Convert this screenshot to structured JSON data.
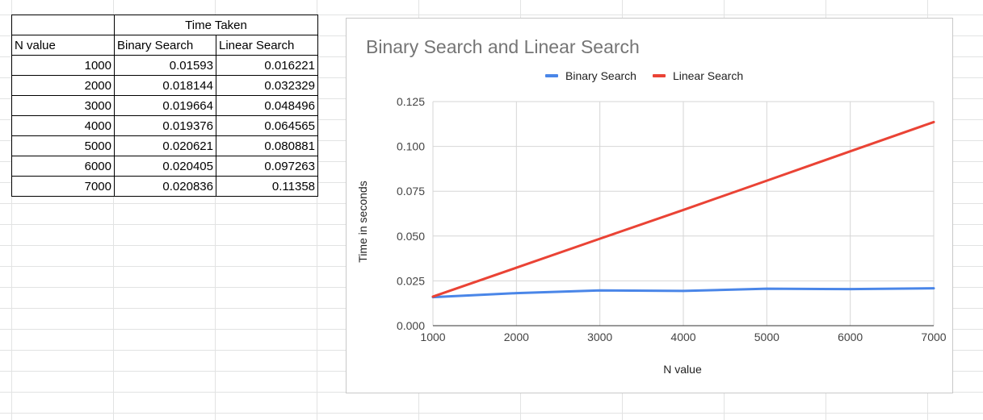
{
  "table": {
    "group_header": "Time Taken",
    "columns": [
      "N value",
      "Binary Search",
      "Linear Search"
    ],
    "rows": [
      [
        "1000",
        "0.01593",
        "0.016221"
      ],
      [
        "2000",
        "0.018144",
        "0.032329"
      ],
      [
        "3000",
        "0.019664",
        "0.048496"
      ],
      [
        "4000",
        "0.019376",
        "0.064565"
      ],
      [
        "5000",
        "0.020621",
        "0.080881"
      ],
      [
        "6000",
        "0.020405",
        "0.097263"
      ],
      [
        "7000",
        "0.020836",
        "0.11358"
      ]
    ]
  },
  "chart_data": {
    "type": "line",
    "title": "Binary Search and Linear Search",
    "xlabel": "N value",
    "ylabel": "Time in seconds",
    "x": [
      1000,
      2000,
      3000,
      4000,
      5000,
      6000,
      7000
    ],
    "xlim": [
      1000,
      7000
    ],
    "ylim": [
      0,
      0.125
    ],
    "x_ticks": [
      "1000",
      "2000",
      "3000",
      "4000",
      "5000",
      "6000",
      "7000"
    ],
    "y_ticks": [
      "0.000",
      "0.025",
      "0.050",
      "0.075",
      "0.100",
      "0.125"
    ],
    "grid": true,
    "legend_position": "top",
    "series": [
      {
        "name": "Binary Search",
        "color": "#4a86e8",
        "values": [
          0.01593,
          0.018144,
          0.019664,
          0.019376,
          0.020621,
          0.020405,
          0.020836
        ]
      },
      {
        "name": "Linear Search",
        "color": "#ea4335",
        "values": [
          0.016221,
          0.032329,
          0.048496,
          0.064565,
          0.080881,
          0.097263,
          0.11358
        ]
      }
    ]
  }
}
